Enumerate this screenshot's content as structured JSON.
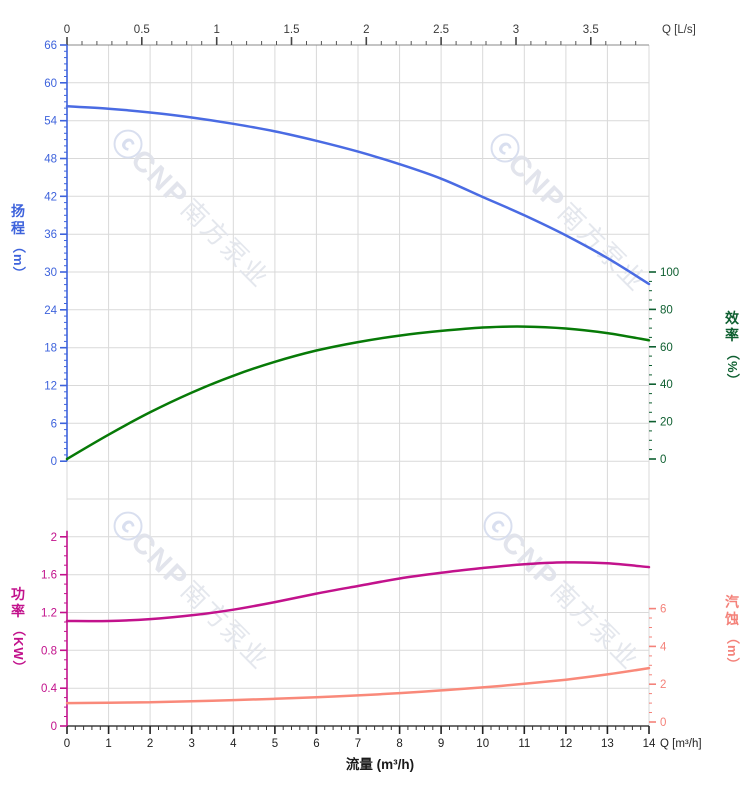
{
  "watermark": {
    "mark": "ⓒ",
    "brand": "CNP",
    "cn": "南方泵业"
  },
  "chart_data": {
    "type": "line",
    "x_flow_m3h": [
      0,
      1,
      2,
      3,
      4,
      5,
      6,
      7,
      8,
      9,
      10,
      11,
      12,
      13,
      14
    ],
    "series": [
      {
        "name": "head",
        "axis": "head",
        "color": "#4a6be3",
        "values": [
          56.3,
          55.9,
          55.3,
          54.5,
          53.5,
          52.3,
          50.8,
          49.1,
          47.1,
          44.8,
          41.9,
          39.0,
          35.8,
          32.2,
          28.1
        ]
      },
      {
        "name": "efficiency",
        "axis": "eff",
        "color": "#077a07",
        "values": [
          0,
          13,
          25,
          35.5,
          44.5,
          52,
          58,
          62.5,
          66,
          68.5,
          70.3,
          70.8,
          69.8,
          67.3,
          63.5
        ]
      },
      {
        "name": "power",
        "axis": "power",
        "color": "#c2128c",
        "values": [
          1.11,
          1.11,
          1.13,
          1.17,
          1.23,
          1.31,
          1.4,
          1.48,
          1.56,
          1.62,
          1.67,
          1.71,
          1.73,
          1.72,
          1.68
        ]
      },
      {
        "name": "npsh",
        "axis": "npsh",
        "color": "#f9897a",
        "values": [
          1.0,
          1.02,
          1.05,
          1.1,
          1.16,
          1.23,
          1.31,
          1.41,
          1.53,
          1.67,
          1.83,
          2.02,
          2.24,
          2.52,
          2.85
        ]
      }
    ],
    "axes": {
      "flow_top": {
        "unit_label": "Q [L/s]",
        "majors": [
          0,
          0.5,
          1,
          1.5,
          2,
          2.5,
          3,
          3.5
        ],
        "minor_step": 0.1,
        "minor_max": 3.8,
        "color": "#3a3a3a"
      },
      "flow_bottom": {
        "unit_label": "Q [m³/h]",
        "title": "流量 (m³/h)",
        "majors": [
          0,
          1,
          2,
          3,
          4,
          5,
          6,
          7,
          8,
          9,
          10,
          11,
          12,
          13,
          14
        ],
        "minor_step": 0.2,
        "color": "#222222"
      },
      "head": {
        "title_cn": "扬程",
        "title_unit": "（m）",
        "majors": [
          66,
          60,
          54,
          48,
          42,
          36,
          30,
          24,
          18,
          12,
          6,
          0
        ],
        "minor_step": 1,
        "color": "#3e63dc"
      },
      "eff": {
        "title_cn": "效率",
        "title_unit": "（%）",
        "majors": [
          100,
          80,
          60,
          40,
          20,
          0
        ],
        "minor_step": 5,
        "color": "#0e5f30"
      },
      "power": {
        "title_cn": "功率",
        "title_unit": "（KW）",
        "majors": [
          2,
          1.6,
          1.2,
          0.8,
          0.4,
          0
        ],
        "minor_step": 0.1,
        "color": "#c2128c"
      },
      "npsh": {
        "title_cn": "汽蚀",
        "title_unit": "（m）",
        "majors": [
          6,
          4,
          2,
          0
        ],
        "minor_step": 0.5,
        "color": "#f4827a"
      }
    },
    "grid": "on",
    "head_range": [
      0,
      66
    ],
    "eff_range": [
      0,
      100
    ],
    "power_range": [
      0,
      2
    ],
    "npsh_range": [
      0,
      6
    ],
    "flow_range_m3h": [
      0,
      14
    ]
  }
}
